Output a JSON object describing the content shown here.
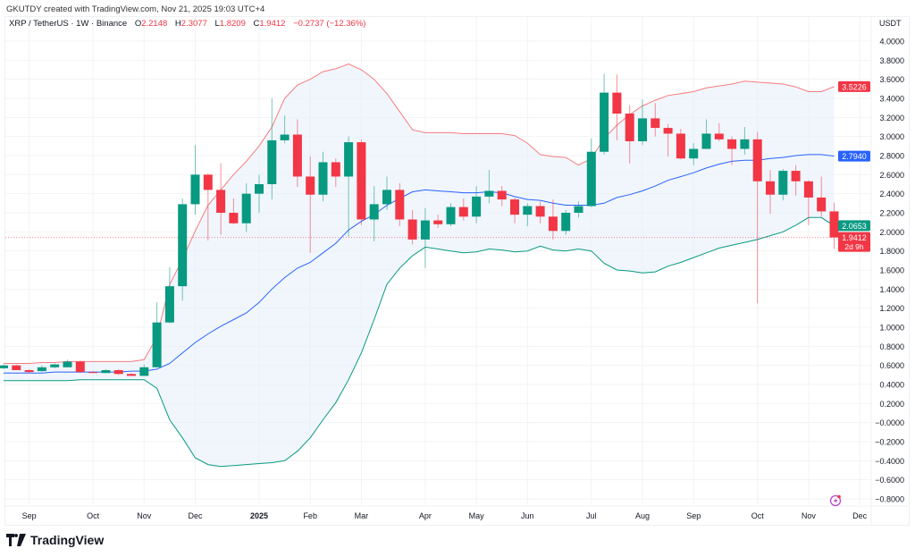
{
  "header": {
    "credit": "GKUTDY created with TradingView.com, Nov 21, 2025 19:03 UTC+4",
    "symbol": "XRP / TetherUS · 1W · Binance",
    "o_label": "O",
    "o": "2.2148",
    "h_label": "H",
    "h": "2.3077",
    "l_label": "L",
    "l": "1.8209",
    "c_label": "C",
    "c": "1.9412",
    "change": "−0.2737 (−12.36%)"
  },
  "currency": "USDT",
  "logo": {
    "text": "TradingView"
  },
  "icons": {
    "alert": "lightning-icon"
  },
  "colors": {
    "up": "#089981",
    "down": "#f23645",
    "upper_band": "#f77c80",
    "basis": "#2962ff",
    "lower_band": "#089981",
    "band_fill": "#e3effa"
  },
  "chart_data": {
    "type": "candlestick",
    "title": "XRP / TetherUS · 1W · Binance",
    "ylim": [
      -0.9,
      4.1
    ],
    "y_ticks": [
      "4.0000",
      "3.8000",
      "3.6000",
      "3.4000",
      "3.2000",
      "3.0000",
      "2.8000",
      "2.6000",
      "2.4000",
      "2.2000",
      "2.0000",
      "1.8000",
      "1.6000",
      "1.4000",
      "1.2000",
      "1.0000",
      "0.8000",
      "0.6000",
      "0.4000",
      "0.2000",
      "−0.0000",
      "−0.2000",
      "−0.4000",
      "−0.6000",
      "−0.8000"
    ],
    "x_ticks": [
      {
        "label": "Sep",
        "date": "2024-09-02"
      },
      {
        "label": "Oct",
        "date": "2024-10-07"
      },
      {
        "label": "Nov",
        "date": "2024-11-04"
      },
      {
        "label": "Dec",
        "date": "2024-12-02"
      },
      {
        "label": "2025",
        "date": "2025-01-06",
        "bold": true
      },
      {
        "label": "Feb",
        "date": "2025-02-03"
      },
      {
        "label": "Mar",
        "date": "2025-03-03"
      },
      {
        "label": "Apr",
        "date": "2025-04-07"
      },
      {
        "label": "May",
        "date": "2025-05-05"
      },
      {
        "label": "Jun",
        "date": "2025-06-02"
      },
      {
        "label": "Jul",
        "date": "2025-07-07"
      },
      {
        "label": "Aug",
        "date": "2025-08-04"
      },
      {
        "label": "Sep",
        "date": "2025-09-01"
      },
      {
        "label": "Oct",
        "date": "2025-10-06"
      },
      {
        "label": "Nov",
        "date": "2025-11-03"
      },
      {
        "label": "Dec",
        "date": "2025-12-01"
      }
    ],
    "grid": true,
    "candles": [
      [
        "2024-08-19",
        0.57,
        0.61,
        0.56,
        0.6
      ],
      [
        "2024-08-26",
        0.6,
        0.61,
        0.55,
        0.55
      ],
      [
        "2024-09-02",
        0.55,
        0.56,
        0.52,
        0.53
      ],
      [
        "2024-09-09",
        0.54,
        0.6,
        0.53,
        0.58
      ],
      [
        "2024-09-16",
        0.58,
        0.62,
        0.57,
        0.61
      ],
      [
        "2024-09-23",
        0.58,
        0.66,
        0.58,
        0.64
      ],
      [
        "2024-09-30",
        0.64,
        0.65,
        0.52,
        0.53
      ],
      [
        "2024-10-07",
        0.53,
        0.54,
        0.52,
        0.52
      ],
      [
        "2024-10-14",
        0.52,
        0.56,
        0.52,
        0.55
      ],
      [
        "2024-10-21",
        0.55,
        0.56,
        0.5,
        0.51
      ],
      [
        "2024-10-28",
        0.51,
        0.52,
        0.49,
        0.49
      ],
      [
        "2024-11-04",
        0.49,
        0.61,
        0.49,
        0.58
      ],
      [
        "2024-11-11",
        0.58,
        1.26,
        0.58,
        1.05
      ],
      [
        "2024-11-18",
        1.05,
        1.63,
        1.04,
        1.43
      ],
      [
        "2024-11-25",
        1.43,
        2.35,
        1.28,
        2.29
      ],
      [
        "2024-12-02",
        2.29,
        2.91,
        2.18,
        2.6
      ],
      [
        "2024-12-09",
        2.6,
        2.61,
        1.91,
        2.44
      ],
      [
        "2024-12-16",
        2.44,
        2.72,
        1.97,
        2.2
      ],
      [
        "2024-12-23",
        2.2,
        2.35,
        2.08,
        2.09
      ],
      [
        "2024-12-30",
        2.09,
        2.51,
        2.0,
        2.4
      ],
      [
        "2025-01-06",
        2.4,
        2.6,
        2.2,
        2.5
      ],
      [
        "2025-01-13",
        2.5,
        3.4,
        2.34,
        2.96
      ],
      [
        "2025-01-20",
        2.96,
        3.22,
        2.93,
        3.02
      ],
      [
        "2025-01-27",
        3.02,
        3.18,
        2.47,
        2.58
      ],
      [
        "2025-02-03",
        2.58,
        2.79,
        1.78,
        2.39
      ],
      [
        "2025-02-10",
        2.39,
        2.84,
        2.32,
        2.73
      ],
      [
        "2025-02-17",
        2.73,
        2.77,
        2.47,
        2.58
      ],
      [
        "2025-02-24",
        2.58,
        3.0,
        1.95,
        2.94
      ],
      [
        "2025-03-03",
        2.94,
        2.97,
        2.07,
        2.13
      ],
      [
        "2025-03-10",
        2.13,
        2.48,
        1.9,
        2.29
      ],
      [
        "2025-03-17",
        2.29,
        2.58,
        2.23,
        2.44
      ],
      [
        "2025-03-24",
        2.44,
        2.51,
        2.06,
        2.13
      ],
      [
        "2025-03-31",
        2.13,
        2.23,
        1.87,
        1.92
      ],
      [
        "2025-04-07",
        1.92,
        2.25,
        1.62,
        2.12
      ],
      [
        "2025-04-14",
        2.12,
        2.18,
        2.04,
        2.08
      ],
      [
        "2025-04-21",
        2.08,
        2.3,
        2.06,
        2.26
      ],
      [
        "2025-04-28",
        2.26,
        2.35,
        2.12,
        2.16
      ],
      [
        "2025-05-05",
        2.16,
        2.48,
        2.09,
        2.37
      ],
      [
        "2025-05-12",
        2.37,
        2.65,
        2.3,
        2.43
      ],
      [
        "2025-05-19",
        2.43,
        2.48,
        2.27,
        2.34
      ],
      [
        "2025-05-26",
        2.34,
        2.36,
        2.09,
        2.18
      ],
      [
        "2025-06-02",
        2.18,
        2.3,
        2.06,
        2.27
      ],
      [
        "2025-06-09",
        2.27,
        2.32,
        2.09,
        2.16
      ],
      [
        "2025-06-16",
        2.16,
        2.34,
        1.92,
        2.01
      ],
      [
        "2025-06-23",
        2.01,
        2.23,
        1.97,
        2.2
      ],
      [
        "2025-06-30",
        2.2,
        2.32,
        2.15,
        2.27
      ],
      [
        "2025-07-07",
        2.27,
        2.98,
        2.26,
        2.84
      ],
      [
        "2025-07-14",
        2.84,
        3.66,
        2.81,
        3.46
      ],
      [
        "2025-07-21",
        3.46,
        3.65,
        2.96,
        3.24
      ],
      [
        "2025-07-28",
        3.24,
        3.33,
        2.72,
        2.95
      ],
      [
        "2025-08-04",
        2.95,
        3.39,
        2.91,
        3.19
      ],
      [
        "2025-08-11",
        3.19,
        3.35,
        3.0,
        3.09
      ],
      [
        "2025-08-18",
        3.09,
        3.13,
        2.79,
        3.03
      ],
      [
        "2025-08-25",
        3.03,
        3.08,
        2.76,
        2.77
      ],
      [
        "2025-09-01",
        2.77,
        2.93,
        2.7,
        2.87
      ],
      [
        "2025-09-08",
        2.87,
        3.18,
        2.87,
        3.03
      ],
      [
        "2025-09-15",
        3.03,
        3.14,
        2.95,
        2.97
      ],
      [
        "2025-09-22",
        2.97,
        3.0,
        2.7,
        2.87
      ],
      [
        "2025-09-29",
        2.87,
        3.1,
        2.81,
        2.97
      ],
      [
        "2025-10-06",
        2.97,
        3.05,
        1.25,
        2.53
      ],
      [
        "2025-10-13",
        2.53,
        2.65,
        2.19,
        2.39
      ],
      [
        "2025-10-20",
        2.39,
        2.66,
        2.33,
        2.64
      ],
      [
        "2025-10-27",
        2.64,
        2.7,
        2.38,
        2.53
      ],
      [
        "2025-11-03",
        2.53,
        2.54,
        2.07,
        2.36
      ],
      [
        "2025-11-10",
        2.36,
        2.58,
        2.16,
        2.2148
      ],
      [
        "2025-11-17",
        2.2148,
        2.3077,
        1.8209,
        1.9412
      ]
    ],
    "bollinger": {
      "upper": [
        0.62,
        0.62,
        0.62,
        0.63,
        0.63,
        0.64,
        0.64,
        0.64,
        0.64,
        0.64,
        0.64,
        0.66,
        0.9,
        1.45,
        1.71,
        2.01,
        2.28,
        2.44,
        2.6,
        2.74,
        2.9,
        3.1,
        3.4,
        3.54,
        3.6,
        3.68,
        3.71,
        3.76,
        3.7,
        3.6,
        3.45,
        3.26,
        3.07,
        3.04,
        3.04,
        3.04,
        3.03,
        3.03,
        3.03,
        3.03,
        3.01,
        2.93,
        2.81,
        2.79,
        2.78,
        2.7,
        2.77,
        2.98,
        3.12,
        3.23,
        3.32,
        3.38,
        3.43,
        3.45,
        3.47,
        3.51,
        3.53,
        3.55,
        3.58,
        3.57,
        3.56,
        3.55,
        3.52,
        3.47,
        3.47,
        3.5226
      ],
      "basis": [
        0.52,
        0.52,
        0.52,
        0.52,
        0.53,
        0.53,
        0.53,
        0.53,
        0.53,
        0.53,
        0.54,
        0.54,
        0.56,
        0.62,
        0.73,
        0.84,
        0.93,
        1.01,
        1.08,
        1.15,
        1.26,
        1.4,
        1.52,
        1.62,
        1.68,
        1.78,
        1.88,
        2.02,
        2.11,
        2.18,
        2.28,
        2.35,
        2.42,
        2.44,
        2.43,
        2.42,
        2.41,
        2.41,
        2.42,
        2.41,
        2.37,
        2.34,
        2.33,
        2.3,
        2.28,
        2.28,
        2.28,
        2.3,
        2.36,
        2.39,
        2.43,
        2.48,
        2.54,
        2.58,
        2.62,
        2.67,
        2.71,
        2.74,
        2.75,
        2.75,
        2.77,
        2.78,
        2.8,
        2.81,
        2.81,
        2.794
      ],
      "lower": [
        0.44,
        0.44,
        0.44,
        0.44,
        0.44,
        0.44,
        0.45,
        0.45,
        0.45,
        0.45,
        0.45,
        0.45,
        0.36,
        0.03,
        -0.16,
        -0.37,
        -0.44,
        -0.46,
        -0.45,
        -0.44,
        -0.43,
        -0.42,
        -0.4,
        -0.3,
        -0.16,
        0.03,
        0.21,
        0.45,
        0.73,
        1.08,
        1.45,
        1.62,
        1.75,
        1.84,
        1.82,
        1.8,
        1.78,
        1.79,
        1.82,
        1.81,
        1.79,
        1.8,
        1.85,
        1.81,
        1.8,
        1.82,
        1.8,
        1.67,
        1.6,
        1.59,
        1.57,
        1.58,
        1.64,
        1.68,
        1.73,
        1.78,
        1.83,
        1.86,
        1.89,
        1.92,
        1.96,
        2.0,
        2.07,
        2.15,
        2.15,
        2.0653
      ]
    },
    "price_badges": [
      {
        "value": "3.5226",
        "color": "#f23645"
      },
      {
        "value": "2.7940",
        "color": "#2962ff"
      },
      {
        "value": "2.0653",
        "color": "#089981"
      },
      {
        "value": "1.9412",
        "color": "#f23645",
        "sub": "2d 9h"
      }
    ],
    "last_price": 1.9412
  }
}
